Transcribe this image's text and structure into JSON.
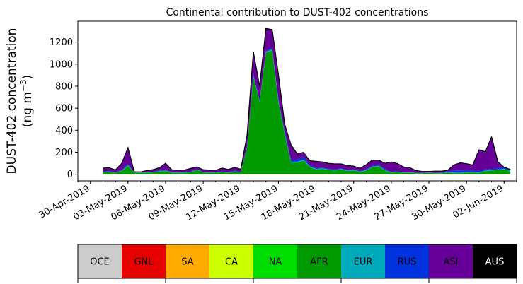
{
  "chart_data": {
    "type": "area",
    "stacked": true,
    "title": "Continental contribution to DUST-402 concentrations",
    "ylabel_line1": "DUST-402 concentration",
    "ylabel_line2": "(ng m",
    "ylabel_sup": "−3",
    "ylabel_close": ")",
    "ylim": [
      -60,
      1390
    ],
    "yticks": [
      0,
      200,
      400,
      600,
      800,
      1000,
      1200
    ],
    "xlim": [
      "2019-04-29",
      "2019-06-03"
    ],
    "xticks": [
      "2019-04-30",
      "2019-05-03",
      "2019-05-06",
      "2019-05-09",
      "2019-05-12",
      "2019-05-15",
      "2019-05-18",
      "2019-05-21",
      "2019-05-24",
      "2019-05-27",
      "2019-05-30",
      "2019-06-02"
    ],
    "xticklabels": [
      "30-Apr-2019",
      "03-May-2019",
      "06-May-2019",
      "09-May-2019",
      "12-May-2019",
      "15-May-2019",
      "18-May-2019",
      "21-May-2019",
      "24-May-2019",
      "27-May-2019",
      "30-May-2019",
      "02-Jun-2019"
    ],
    "grid": false,
    "legend_placement": "below",
    "x": [
      "2019-05-01T00:00",
      "2019-05-01T12:00",
      "2019-05-02T00:00",
      "2019-05-02T12:00",
      "2019-05-03T00:00",
      "2019-05-03T12:00",
      "2019-05-04T00:00",
      "2019-05-04T12:00",
      "2019-05-05T00:00",
      "2019-05-05T12:00",
      "2019-05-06T00:00",
      "2019-05-06T12:00",
      "2019-05-07T00:00",
      "2019-05-07T12:00",
      "2019-05-08T00:00",
      "2019-05-08T12:00",
      "2019-05-09T00:00",
      "2019-05-09T12:00",
      "2019-05-10T00:00",
      "2019-05-10T12:00",
      "2019-05-11T00:00",
      "2019-05-11T12:00",
      "2019-05-12T00:00",
      "2019-05-12T12:00",
      "2019-05-13T00:00",
      "2019-05-13T12:00",
      "2019-05-14T00:00",
      "2019-05-14T12:00",
      "2019-05-15T00:00",
      "2019-05-15T12:00",
      "2019-05-16T00:00",
      "2019-05-16T12:00",
      "2019-05-17T00:00",
      "2019-05-17T12:00",
      "2019-05-18T00:00",
      "2019-05-18T12:00",
      "2019-05-19T00:00",
      "2019-05-19T12:00",
      "2019-05-20T00:00",
      "2019-05-20T12:00",
      "2019-05-21T00:00",
      "2019-05-21T12:00",
      "2019-05-22T00:00",
      "2019-05-22T12:00",
      "2019-05-23T00:00",
      "2019-05-23T12:00",
      "2019-05-24T00:00",
      "2019-05-24T12:00",
      "2019-05-25T00:00",
      "2019-05-25T12:00",
      "2019-05-26T00:00",
      "2019-05-26T12:00",
      "2019-05-27T00:00",
      "2019-05-27T12:00",
      "2019-05-28T00:00",
      "2019-05-28T12:00",
      "2019-05-29T00:00",
      "2019-05-29T12:00",
      "2019-05-30T00:00",
      "2019-05-30T12:00",
      "2019-05-31T00:00",
      "2019-05-31T12:00",
      "2019-06-01T00:00",
      "2019-06-01T12:00",
      "2019-06-02T00:00",
      "2019-06-02T12:00"
    ],
    "series": [
      {
        "name": "OCE",
        "color": "#cccccc",
        "values": [
          0,
          0,
          0,
          0,
          0,
          0,
          0,
          0,
          0,
          0,
          0,
          0,
          0,
          0,
          0,
          0,
          0,
          0,
          0,
          0,
          0,
          0,
          0,
          0,
          0,
          0,
          0,
          0,
          0,
          0,
          0,
          0,
          0,
          0,
          0,
          0,
          0,
          0,
          0,
          0,
          0,
          0,
          0,
          0,
          0,
          0,
          0,
          0,
          0,
          0,
          0,
          0,
          0,
          0,
          0,
          0,
          0,
          0,
          0,
          0,
          0,
          0,
          0,
          0,
          0,
          0
        ]
      },
      {
        "name": "GNL",
        "color": "#e60000",
        "values": [
          0,
          0,
          0,
          0,
          0,
          0,
          0,
          0,
          0,
          0,
          0,
          0,
          0,
          0,
          0,
          0,
          0,
          0,
          0,
          0,
          0,
          0,
          0,
          0,
          0,
          0,
          0,
          0,
          0,
          0,
          0,
          0,
          0,
          0,
          0,
          0,
          0,
          0,
          0,
          0,
          0,
          0,
          0,
          0,
          0,
          0,
          0,
          0,
          0,
          0,
          0,
          0,
          0,
          0,
          0,
          0,
          0,
          0,
          0,
          0,
          0,
          0,
          0,
          0,
          0,
          0
        ]
      },
      {
        "name": "SA",
        "color": "#ffaa00",
        "values": [
          0,
          0,
          0,
          0,
          0,
          0,
          0,
          0,
          0,
          0,
          0,
          0,
          0,
          0,
          0,
          0,
          0,
          0,
          0,
          0,
          0,
          0,
          0,
          0,
          0,
          0,
          0,
          0,
          0,
          0,
          0,
          0,
          0,
          0,
          0,
          0,
          0,
          0,
          0,
          0,
          0,
          0,
          0,
          0,
          0,
          0,
          0,
          0,
          0,
          0,
          0,
          0,
          0,
          0,
          0,
          0,
          0,
          0,
          0,
          0,
          0,
          0,
          0,
          0,
          0,
          0
        ]
      },
      {
        "name": "CA",
        "color": "#ccff00",
        "values": [
          2,
          2,
          2,
          2,
          2,
          2,
          2,
          2,
          2,
          2,
          2,
          2,
          2,
          2,
          2,
          2,
          2,
          2,
          2,
          2,
          2,
          2,
          2,
          2,
          2,
          2,
          2,
          2,
          2,
          2,
          2,
          2,
          2,
          2,
          2,
          2,
          2,
          2,
          2,
          2,
          2,
          2,
          2,
          2,
          2,
          2,
          2,
          2,
          2,
          2,
          2,
          2,
          2,
          2,
          2,
          2,
          2,
          2,
          2,
          2,
          2,
          2,
          2,
          2,
          2,
          2
        ]
      },
      {
        "name": "NA",
        "color": "#00dd00",
        "values": [
          2,
          2,
          2,
          2,
          2,
          2,
          2,
          2,
          2,
          2,
          2,
          2,
          2,
          2,
          2,
          2,
          2,
          2,
          2,
          2,
          2,
          2,
          2,
          2,
          2,
          2,
          2,
          2,
          2,
          2,
          2,
          2,
          2,
          2,
          2,
          2,
          2,
          2,
          2,
          2,
          2,
          2,
          2,
          2,
          2,
          2,
          2,
          2,
          2,
          2,
          2,
          2,
          2,
          2,
          2,
          2,
          2,
          2,
          2,
          2,
          2,
          2,
          2,
          2,
          2,
          2
        ]
      },
      {
        "name": "AFR",
        "color": "#009900",
        "values": [
          12,
          15,
          10,
          25,
          70,
          10,
          8,
          10,
          12,
          20,
          25,
          10,
          8,
          10,
          15,
          35,
          12,
          10,
          8,
          15,
          10,
          20,
          12,
          240,
          880,
          650,
          1100,
          1120,
          650,
          360,
          100,
          100,
          120,
          60,
          40,
          45,
          35,
          30,
          40,
          25,
          30,
          15,
          30,
          60,
          70,
          30,
          10,
          15,
          8,
          10,
          5,
          5,
          8,
          5,
          5,
          10,
          8,
          5,
          12,
          10,
          8,
          25,
          30,
          35,
          40,
          25
        ]
      },
      {
        "name": "EUR",
        "color": "#00aabb",
        "values": [
          5,
          5,
          3,
          5,
          8,
          2,
          2,
          2,
          3,
          5,
          5,
          3,
          2,
          2,
          2,
          3,
          2,
          2,
          2,
          2,
          2,
          3,
          2,
          5,
          10,
          5,
          10,
          10,
          10,
          10,
          10,
          10,
          10,
          8,
          5,
          5,
          5,
          5,
          5,
          5,
          5,
          5,
          5,
          5,
          5,
          5,
          3,
          3,
          2,
          2,
          2,
          2,
          2,
          2,
          2,
          2,
          3,
          5,
          5,
          5,
          5,
          5,
          5,
          5,
          5,
          5
        ]
      },
      {
        "name": "RUS",
        "color": "#0033dd",
        "values": [
          5,
          5,
          3,
          5,
          10,
          2,
          2,
          2,
          3,
          5,
          5,
          3,
          2,
          2,
          2,
          5,
          3,
          2,
          2,
          5,
          3,
          5,
          3,
          10,
          20,
          10,
          10,
          10,
          20,
          20,
          15,
          20,
          25,
          10,
          8,
          8,
          5,
          5,
          5,
          5,
          5,
          5,
          8,
          10,
          10,
          10,
          5,
          5,
          2,
          2,
          2,
          2,
          2,
          2,
          5,
          10,
          20,
          20,
          15,
          15,
          15,
          10,
          10,
          10,
          15,
          10
        ]
      },
      {
        "name": "ASI",
        "color": "#660099",
        "values": [
          30,
          30,
          20,
          60,
          150,
          5,
          5,
          15,
          20,
          25,
          60,
          20,
          20,
          20,
          30,
          20,
          20,
          20,
          20,
          30,
          25,
          30,
          25,
          100,
          200,
          130,
          200,
          170,
          220,
          60,
          140,
          50,
          40,
          40,
          60,
          50,
          50,
          50,
          40,
          40,
          30,
          25,
          40,
          50,
          40,
          50,
          90,
          70,
          50,
          40,
          20,
          12,
          10,
          15,
          12,
          10,
          50,
          70,
          60,
          50,
          190,
          160,
          290,
          60,
          0,
          0
        ]
      },
      {
        "name": "AUS",
        "color": "#000000",
        "values": [
          0,
          0,
          0,
          0,
          0,
          0,
          0,
          0,
          0,
          0,
          0,
          0,
          0,
          0,
          0,
          0,
          0,
          0,
          0,
          0,
          0,
          0,
          0,
          0,
          0,
          0,
          0,
          0,
          0,
          0,
          0,
          0,
          0,
          0,
          0,
          0,
          0,
          0,
          0,
          0,
          0,
          0,
          0,
          0,
          0,
          0,
          0,
          0,
          0,
          0,
          0,
          0,
          0,
          0,
          0,
          0,
          0,
          0,
          0,
          0,
          0,
          0,
          0,
          0,
          0,
          0
        ]
      }
    ]
  },
  "legend": {
    "items": [
      {
        "label": "OCE",
        "color": "#cccccc",
        "text_color": "#000000"
      },
      {
        "label": "GNL",
        "color": "#e60000",
        "text_color": "#000000"
      },
      {
        "label": "SA",
        "color": "#ffaa00",
        "text_color": "#000000"
      },
      {
        "label": "CA",
        "color": "#ccff00",
        "text_color": "#000000"
      },
      {
        "label": "NA",
        "color": "#00dd00",
        "text_color": "#000000"
      },
      {
        "label": "AFR",
        "color": "#009900",
        "text_color": "#000000"
      },
      {
        "label": "EUR",
        "color": "#00aabb",
        "text_color": "#000000"
      },
      {
        "label": "RUS",
        "color": "#0033dd",
        "text_color": "#000000"
      },
      {
        "label": "ASI",
        "color": "#660099",
        "text_color": "#000000"
      },
      {
        "label": "AUS",
        "color": "#000000",
        "text_color": "#ffffff"
      }
    ]
  }
}
